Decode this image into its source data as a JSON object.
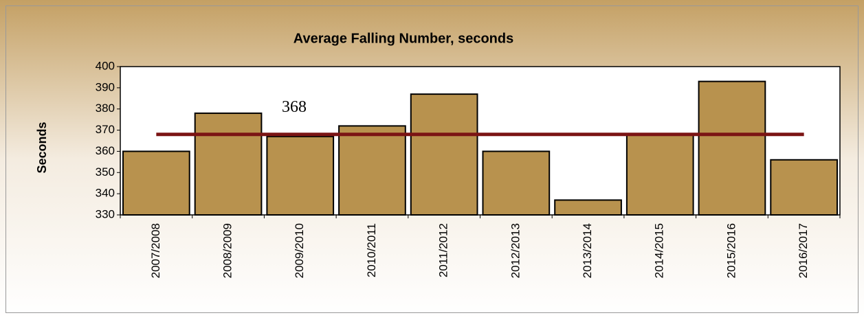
{
  "chart_data": {
    "type": "bar",
    "title": "Average Falling Number, seconds",
    "y_label": "Seconds",
    "categories": [
      "2007/2008",
      "2008/2009",
      "2009/2010",
      "2010/2011",
      "2011/2012",
      "2012/2013",
      "2013/2014",
      "2014/2015",
      "2015/2016",
      "2016/2017"
    ],
    "values": [
      360,
      378,
      367,
      372,
      387,
      360,
      337,
      368,
      393,
      356
    ],
    "color": "#b8924e",
    "average": 368,
    "average_color": "#7b1414",
    "ylim": [
      330,
      400
    ],
    "yticks": [
      330,
      340,
      350,
      360,
      370,
      380,
      390,
      400
    ]
  }
}
